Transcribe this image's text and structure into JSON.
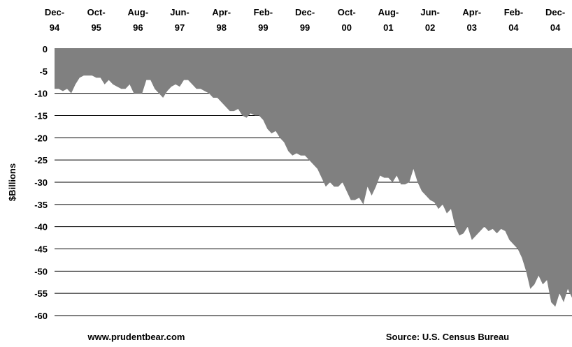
{
  "chart_data": {
    "type": "area",
    "y_label": "$Billions",
    "footer_left": "www.prudentbear.com",
    "footer_right": "Source: U.S. Census Bureau",
    "color": "#808080",
    "grid": true,
    "ylim": [
      -60,
      0
    ],
    "yticks": [
      0,
      -5,
      -10,
      -15,
      -20,
      -25,
      -30,
      -35,
      -40,
      -45,
      -50,
      -55,
      -60
    ],
    "categories": [
      "Dec-94",
      null,
      null,
      null,
      null,
      null,
      null,
      null,
      null,
      null,
      "Oct-95",
      null,
      null,
      null,
      null,
      null,
      null,
      null,
      null,
      null,
      "Aug-96",
      null,
      null,
      null,
      null,
      null,
      null,
      null,
      null,
      null,
      "Jun-97",
      null,
      null,
      null,
      null,
      null,
      null,
      null,
      null,
      null,
      "Apr-98",
      null,
      null,
      null,
      null,
      null,
      null,
      null,
      null,
      null,
      "Feb-99",
      null,
      null,
      null,
      null,
      null,
      null,
      null,
      null,
      null,
      "Dec-99",
      null,
      null,
      null,
      null,
      null,
      null,
      null,
      null,
      null,
      "Oct-00",
      null,
      null,
      null,
      null,
      null,
      null,
      null,
      null,
      null,
      "Aug-01",
      null,
      null,
      null,
      null,
      null,
      null,
      null,
      null,
      null,
      "Jun-02",
      null,
      null,
      null,
      null,
      null,
      null,
      null,
      null,
      null,
      "Apr-03",
      null,
      null,
      null,
      null,
      null,
      null,
      null,
      null,
      null,
      "Feb-04",
      null,
      null,
      null,
      null,
      null,
      null,
      null,
      null,
      null,
      "Dec-04",
      null,
      null,
      null,
      null
    ],
    "values": [
      -9,
      -9,
      -9.5,
      -9,
      -10,
      -8,
      -6.5,
      -6,
      -6,
      -6,
      -6.5,
      -6.5,
      -8,
      -7,
      -8,
      -8.5,
      -9,
      -9,
      -8,
      -10,
      -10,
      -10,
      -7,
      -7,
      -9,
      -10,
      -11,
      -9.5,
      -8.5,
      -8,
      -8.5,
      -7,
      -7,
      -8,
      -9,
      -9,
      -9.5,
      -10,
      -11,
      -11,
      -12,
      -13,
      -14,
      -14,
      -13.5,
      -15,
      -15.5,
      -14.5,
      -15,
      -15,
      -16,
      -18,
      -19,
      -18.5,
      -20,
      -21,
      -23,
      -24,
      -23.5,
      -24,
      -24,
      -25,
      -26,
      -27,
      -29,
      -31,
      -30,
      -31,
      -31,
      -30,
      -32,
      -34,
      -34,
      -33.5,
      -35,
      -31,
      -33,
      -31,
      -28.5,
      -29,
      -29,
      -30,
      -28.5,
      -30.5,
      -30.5,
      -30,
      -27,
      -30,
      -32,
      -33,
      -34,
      -34.5,
      -36,
      -35,
      -37,
      -36,
      -40,
      -42,
      -41.5,
      -40,
      -43,
      -42,
      -41,
      -40,
      -41,
      -40.5,
      -41.5,
      -40.5,
      -41,
      -43,
      -44,
      -45,
      -47,
      -50,
      -54,
      -53,
      -51,
      -53,
      -52,
      -57,
      -58,
      -55,
      -57,
      -54,
      -56
    ]
  }
}
